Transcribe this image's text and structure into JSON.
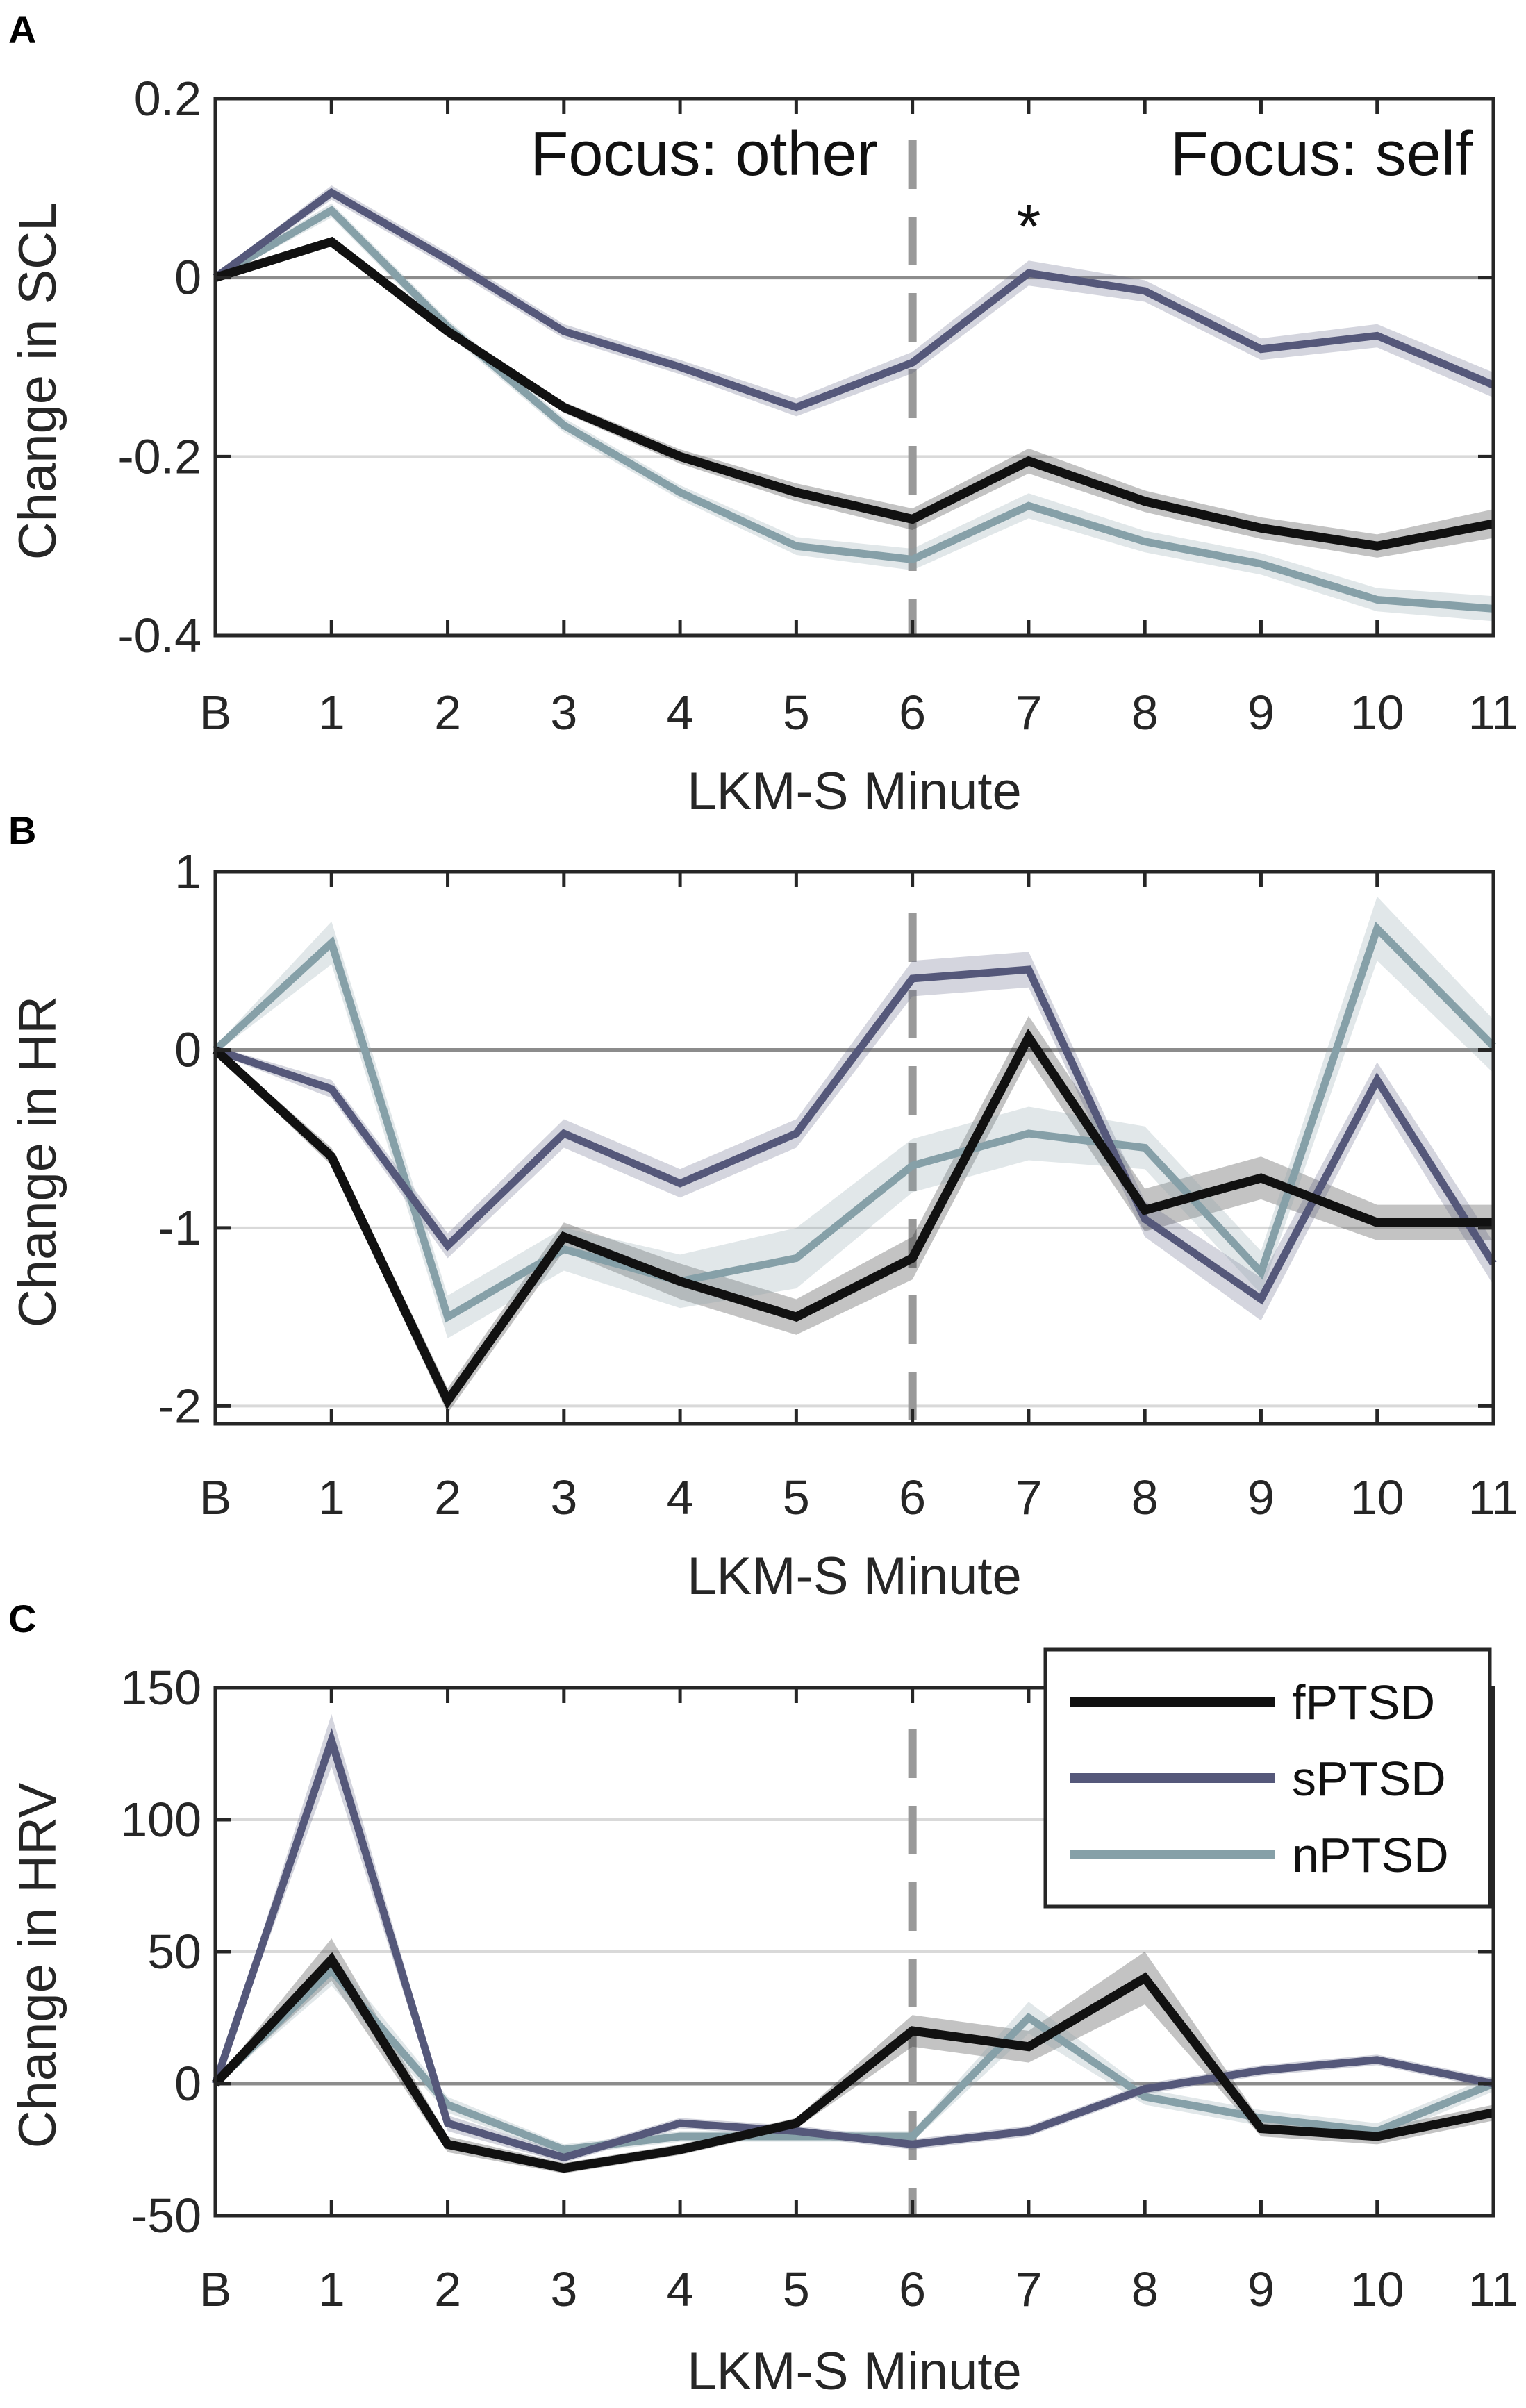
{
  "x_ticks": [
    "B",
    "1",
    "2",
    "3",
    "4",
    "5",
    "6",
    "7",
    "8",
    "9",
    "10",
    "11"
  ],
  "colors": {
    "fPTSD": "#111111",
    "sPTSD": "#55587a",
    "nPTSD": "#86a0a8",
    "axis": "#262626",
    "grid": "#d9d9d9",
    "zero": "#8c8c8c",
    "divider": "#999999"
  },
  "chart_data": [
    {
      "type": "line",
      "panel": "A",
      "xlabel": "LKM-S Minute",
      "ylabel": "Change in SCL",
      "categories": [
        "B",
        "1",
        "2",
        "3",
        "4",
        "5",
        "6",
        "7",
        "8",
        "9",
        "10",
        "11"
      ],
      "ylim": [
        -0.4,
        0.2
      ],
      "yticks": [
        -0.4,
        -0.2,
        0,
        0.2
      ],
      "ytick_labels": [
        "-0.4",
        "-0.2",
        "0",
        "0.2"
      ],
      "phase_labels": [
        "Focus: other",
        "Focus: self"
      ],
      "significance": "*",
      "significance_at": "7",
      "divider_at": "6",
      "series": [
        {
          "name": "fPTSD",
          "values": [
            0,
            0.04,
            -0.06,
            -0.145,
            -0.2,
            -0.24,
            -0.27,
            -0.205,
            -0.25,
            -0.28,
            -0.3,
            -0.275
          ],
          "band": [
            0.003,
            0.005,
            0.005,
            0.006,
            0.008,
            0.01,
            0.012,
            0.014,
            0.012,
            0.012,
            0.013,
            0.016
          ]
        },
        {
          "name": "sPTSD",
          "values": [
            0,
            0.095,
            0.02,
            -0.06,
            -0.1,
            -0.145,
            -0.095,
            0.005,
            -0.015,
            -0.08,
            -0.065,
            -0.12
          ],
          "band": [
            0.003,
            0.008,
            0.008,
            0.008,
            0.008,
            0.01,
            0.012,
            0.014,
            0.012,
            0.012,
            0.013,
            0.014
          ]
        },
        {
          "name": "nPTSD",
          "values": [
            0,
            0.075,
            -0.055,
            -0.165,
            -0.24,
            -0.3,
            -0.315,
            -0.255,
            -0.295,
            -0.32,
            -0.36,
            -0.37
          ],
          "band": [
            0.003,
            0.008,
            0.008,
            0.008,
            0.008,
            0.01,
            0.012,
            0.014,
            0.012,
            0.012,
            0.013,
            0.014
          ]
        }
      ]
    },
    {
      "type": "line",
      "panel": "B",
      "xlabel": "LKM-S Minute",
      "ylabel": "Change in HR",
      "categories": [
        "B",
        "1",
        "2",
        "3",
        "4",
        "5",
        "6",
        "7",
        "8",
        "9",
        "10",
        "11"
      ],
      "ylim": [
        -2.1,
        1
      ],
      "yticks": [
        -2,
        -1,
        0,
        1
      ],
      "ytick_labels": [
        "-2",
        "-1",
        "0",
        "1"
      ],
      "divider_at": "6",
      "series": [
        {
          "name": "fPTSD",
          "values": [
            0,
            -0.6,
            -1.97,
            -1.05,
            -1.3,
            -1.5,
            -1.17,
            0.07,
            -0.9,
            -0.72,
            -0.97,
            -0.97
          ],
          "band": [
            0.02,
            0.05,
            0.07,
            0.08,
            0.1,
            0.1,
            0.12,
            0.12,
            0.12,
            0.12,
            0.1,
            0.1
          ]
        },
        {
          "name": "sPTSD",
          "values": [
            0,
            -0.22,
            -1.1,
            -0.47,
            -0.75,
            -0.47,
            0.4,
            0.45,
            -0.95,
            -1.4,
            -0.17,
            -1.2
          ],
          "band": [
            0.02,
            0.05,
            0.07,
            0.08,
            0.08,
            0.08,
            0.1,
            0.1,
            0.1,
            0.12,
            0.1,
            0.12
          ]
        },
        {
          "name": "nPTSD",
          "values": [
            0,
            0.6,
            -1.5,
            -1.12,
            -1.3,
            -1.17,
            -0.65,
            -0.47,
            -0.55,
            -1.25,
            0.68,
            0.02
          ],
          "band": [
            0.02,
            0.12,
            0.12,
            0.12,
            0.15,
            0.17,
            0.15,
            0.15,
            0.12,
            0.12,
            0.18,
            0.15
          ]
        }
      ]
    },
    {
      "type": "line",
      "panel": "C",
      "xlabel": "LKM-S Minute",
      "ylabel": "Change in HRV",
      "categories": [
        "B",
        "1",
        "2",
        "3",
        "4",
        "5",
        "6",
        "7",
        "8",
        "9",
        "10",
        "11"
      ],
      "ylim": [
        -50,
        150
      ],
      "yticks": [
        -50,
        0,
        50,
        100,
        150
      ],
      "ytick_labels": [
        "-50",
        "0",
        "50",
        "100",
        "150"
      ],
      "divider_at": "6",
      "legend_position": "top-right",
      "series": [
        {
          "name": "fPTSD",
          "values": [
            0,
            47,
            -23,
            -32,
            -25,
            -15,
            20,
            14,
            40,
            -17,
            -20,
            -11
          ],
          "band": [
            1,
            8,
            3,
            2,
            2,
            2,
            6,
            6,
            10,
            3,
            3,
            3
          ]
        },
        {
          "name": "sPTSD",
          "values": [
            0,
            130,
            -15,
            -28,
            -15,
            -18,
            -23,
            -18,
            -2,
            5,
            9,
            0
          ],
          "band": [
            1,
            10,
            3,
            2,
            2,
            2,
            2,
            2,
            2,
            2,
            2,
            2
          ]
        },
        {
          "name": "nPTSD",
          "values": [
            0,
            43,
            -8,
            -25,
            -20,
            -20,
            -20,
            25,
            -5,
            -13,
            -18,
            0
          ],
          "band": [
            1,
            6,
            3,
            2,
            2,
            2,
            2,
            6,
            3,
            3,
            3,
            3
          ]
        }
      ]
    }
  ]
}
